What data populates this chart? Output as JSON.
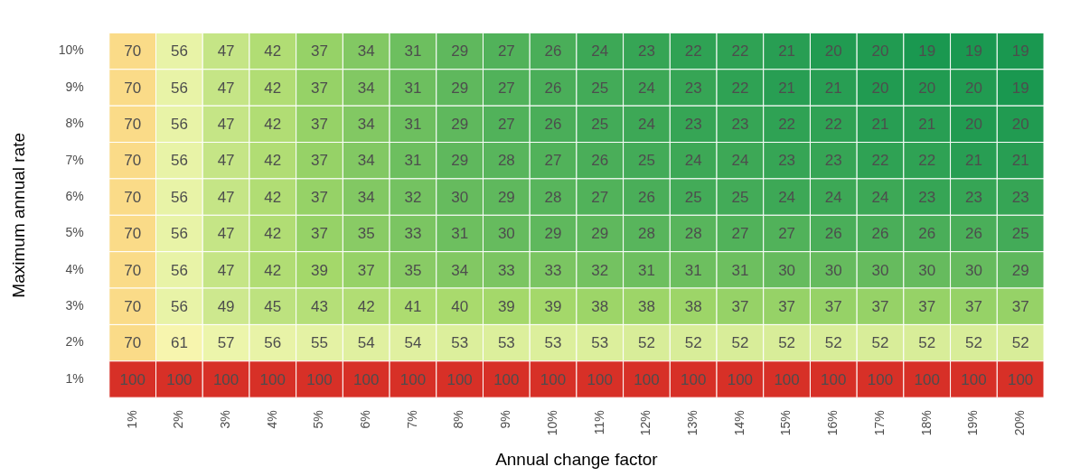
{
  "chart_data": {
    "type": "heatmap",
    "xlabel": "Annual change factor",
    "ylabel": "Maximum annual rate",
    "categories": [
      "1%",
      "2%",
      "3%",
      "4%",
      "5%",
      "6%",
      "7%",
      "8%",
      "9%",
      "10%",
      "11%",
      "12%",
      "13%",
      "14%",
      "15%",
      "16%",
      "17%",
      "18%",
      "19%",
      "20%"
    ],
    "y_categories": [
      "10%",
      "9%",
      "8%",
      "7%",
      "6%",
      "5%",
      "4%",
      "3%",
      "2%",
      "1%"
    ],
    "cells": [
      [
        70,
        56,
        47,
        42,
        37,
        34,
        31,
        29,
        27,
        26,
        24,
        23,
        22,
        22,
        21,
        20,
        20,
        19,
        19,
        19
      ],
      [
        70,
        56,
        47,
        42,
        37,
        34,
        31,
        29,
        27,
        26,
        25,
        24,
        23,
        22,
        21,
        21,
        20,
        20,
        20,
        19
      ],
      [
        70,
        56,
        47,
        42,
        37,
        34,
        31,
        29,
        27,
        26,
        25,
        24,
        23,
        23,
        22,
        22,
        21,
        21,
        20,
        20
      ],
      [
        70,
        56,
        47,
        42,
        37,
        34,
        31,
        29,
        28,
        27,
        26,
        25,
        24,
        24,
        23,
        23,
        22,
        22,
        21,
        21
      ],
      [
        70,
        56,
        47,
        42,
        37,
        34,
        32,
        30,
        29,
        28,
        27,
        26,
        25,
        25,
        24,
        24,
        24,
        23,
        23,
        23
      ],
      [
        70,
        56,
        47,
        42,
        37,
        35,
        33,
        31,
        30,
        29,
        29,
        28,
        28,
        27,
        27,
        26,
        26,
        26,
        26,
        25
      ],
      [
        70,
        56,
        47,
        42,
        39,
        37,
        35,
        34,
        33,
        33,
        32,
        31,
        31,
        31,
        30,
        30,
        30,
        30,
        30,
        29
      ],
      [
        70,
        56,
        49,
        45,
        43,
        42,
        41,
        40,
        39,
        39,
        38,
        38,
        38,
        37,
        37,
        37,
        37,
        37,
        37,
        37
      ],
      [
        70,
        61,
        57,
        56,
        55,
        54,
        54,
        53,
        53,
        53,
        53,
        52,
        52,
        52,
        52,
        52,
        52,
        52,
        52,
        52
      ],
      [
        100,
        100,
        100,
        100,
        100,
        100,
        100,
        100,
        100,
        100,
        100,
        100,
        100,
        100,
        100,
        100,
        100,
        100,
        100,
        100
      ]
    ],
    "colors": [
      "#1a9850",
      "#a6d96a",
      "#f6f9b4",
      "#fdc060",
      "#d73027"
    ],
    "data_labels": true
  }
}
